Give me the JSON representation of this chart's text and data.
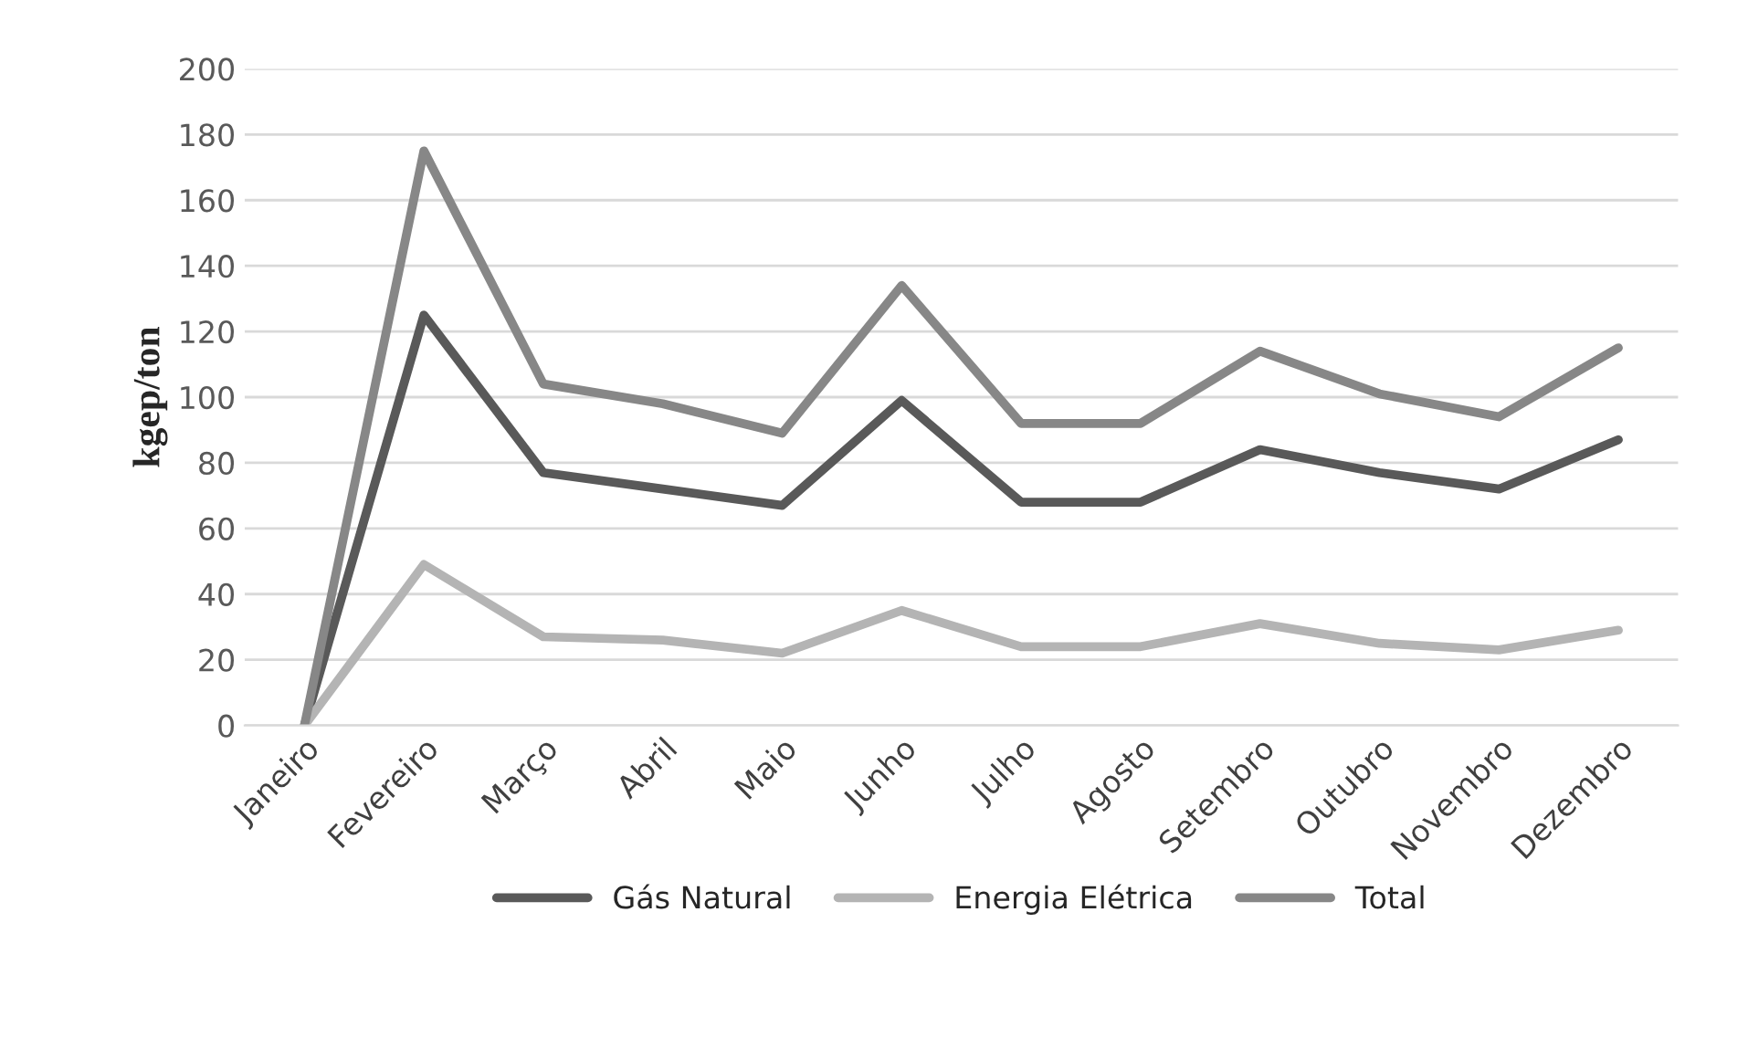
{
  "chart_data": {
    "type": "line",
    "ylabel": "kgep/ton",
    "categories": [
      "Janeiro",
      "Fevereiro",
      "Março",
      "Abril",
      "Maio",
      "Junho",
      "Julho",
      "Agosto",
      "Setembro",
      "Outubro",
      "Novembro",
      "Dezembro"
    ],
    "series": [
      {
        "name": "Gás Natural",
        "color": "#595959",
        "values": [
          0,
          125,
          77,
          72,
          67,
          99,
          68,
          68,
          84,
          77,
          72,
          87
        ]
      },
      {
        "name": "Energia Elétrica",
        "color": "#b4b4b4",
        "values": [
          0,
          49,
          27,
          26,
          22,
          35,
          24,
          24,
          31,
          25,
          23,
          29
        ]
      },
      {
        "name": "Total",
        "color": "#878787",
        "values": [
          0,
          175,
          104,
          98,
          89,
          134,
          92,
          92,
          114,
          101,
          94,
          115
        ]
      }
    ],
    "ylim": [
      0,
      200
    ],
    "yticks": [
      0,
      20,
      40,
      60,
      80,
      100,
      120,
      140,
      160,
      180,
      200
    ],
    "grid": "y",
    "legend": "bottom",
    "marker": "none",
    "line_style": "solid"
  }
}
